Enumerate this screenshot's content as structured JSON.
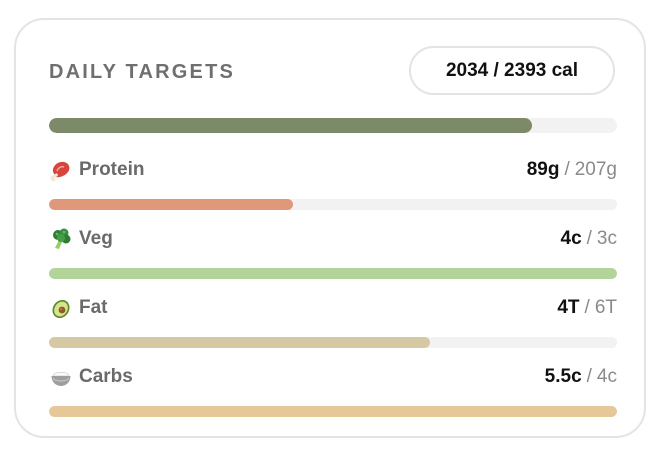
{
  "header": {
    "title": "DAILY TARGETS",
    "calories": "2034 / 2393 cal"
  },
  "calorie_progress": {
    "fraction": 0.85,
    "color": "#7c8a6a"
  },
  "macros": [
    {
      "key": "protein",
      "icon": "meat-icon",
      "label": "Protein",
      "current": "89g",
      "separator": "/",
      "target": "207g",
      "fraction": 0.43,
      "color": "#e0987a"
    },
    {
      "key": "veg",
      "icon": "broccoli-icon",
      "label": "Veg",
      "current": "4c",
      "separator": "/",
      "target": "3c",
      "fraction": 1.0,
      "color": "#b2d49a"
    },
    {
      "key": "fat",
      "icon": "avocado-icon",
      "label": "Fat",
      "current": "4T",
      "separator": "/",
      "target": "6T",
      "fraction": 0.67,
      "color": "#d6c8a2"
    },
    {
      "key": "carbs",
      "icon": "rice-bowl-icon",
      "label": "Carbs",
      "current": "5.5c",
      "separator": "/",
      "target": "4c",
      "fraction": 1.0,
      "color": "#e6c798"
    }
  ]
}
